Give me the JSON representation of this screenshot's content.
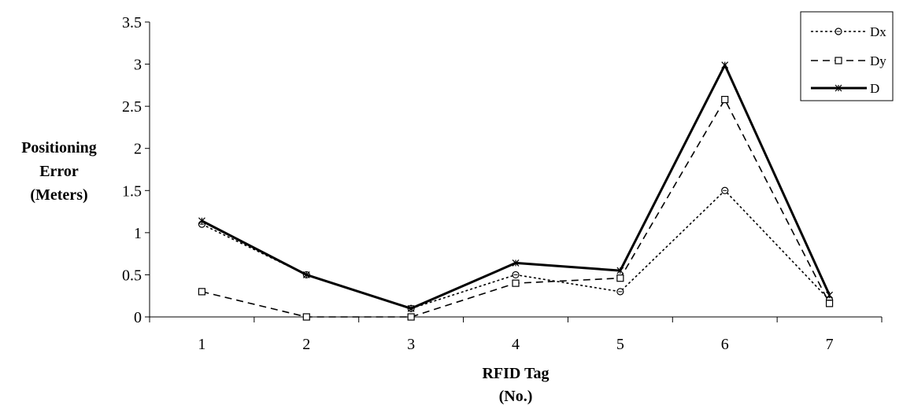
{
  "chart_data": {
    "type": "line",
    "categories": [
      "1",
      "2",
      "3",
      "4",
      "5",
      "6",
      "7"
    ],
    "series": [
      {
        "name": "Dx",
        "values": [
          1.1,
          0.5,
          0.1,
          0.5,
          0.3,
          1.5,
          0.2
        ],
        "line_style": "dotted",
        "marker": "circle",
        "color": "#000000"
      },
      {
        "name": "Dy",
        "values": [
          0.3,
          0.0,
          0.0,
          0.4,
          0.46,
          2.58,
          0.16
        ],
        "line_style": "dashed",
        "marker": "square",
        "color": "#000000"
      },
      {
        "name": "D",
        "values": [
          1.14,
          0.5,
          0.1,
          0.64,
          0.55,
          2.99,
          0.26
        ],
        "line_style": "solid",
        "marker": "star",
        "color": "#000000"
      }
    ],
    "yticks": [
      "0",
      "0.5",
      "1",
      "1.5",
      "2",
      "2.5",
      "3",
      "3.5"
    ],
    "ylim": [
      0,
      3.5
    ],
    "ylabel": [
      "Positioning",
      "Error",
      "(Meters)"
    ],
    "xlabel": [
      "RFID Tag",
      "(No.)"
    ],
    "grid": false,
    "legend_position": "top-right"
  }
}
